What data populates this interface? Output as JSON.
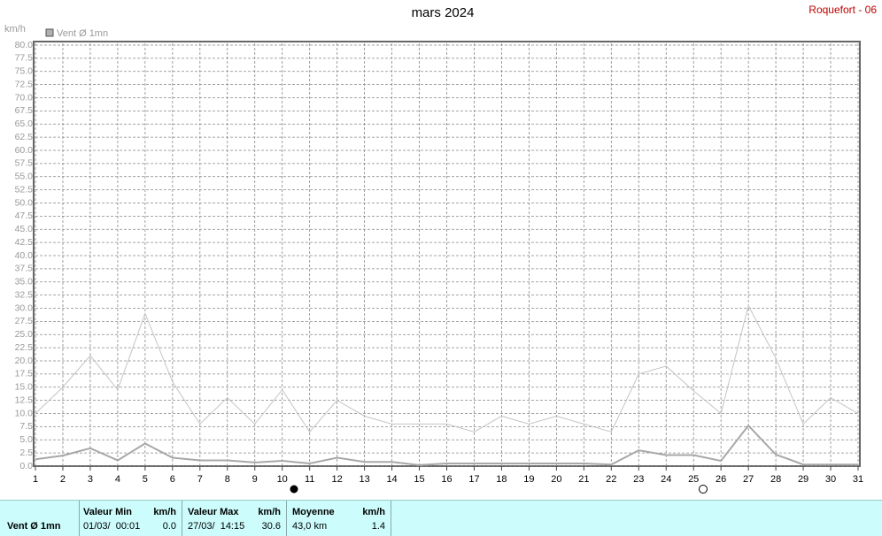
{
  "chart_data": {
    "type": "line",
    "title": "mars 2024",
    "station": "Roquefort - 06",
    "y_label": "km/h",
    "x": [
      1,
      2,
      3,
      4,
      5,
      6,
      7,
      8,
      9,
      10,
      11,
      12,
      13,
      14,
      15,
      16,
      17,
      18,
      19,
      20,
      21,
      22,
      23,
      24,
      25,
      26,
      27,
      28,
      29,
      30,
      31
    ],
    "xlim": [
      1,
      31
    ],
    "xticks": [
      1,
      2,
      3,
      4,
      5,
      6,
      7,
      8,
      9,
      10,
      11,
      12,
      13,
      14,
      15,
      16,
      17,
      18,
      19,
      20,
      21,
      22,
      23,
      24,
      25,
      26,
      27,
      28,
      29,
      30,
      31
    ],
    "ylim": [
      0,
      80
    ],
    "yticks": [
      {
        "value": 0,
        "label": "0.0"
      },
      {
        "value": 2.5,
        "label": "2.5"
      },
      {
        "value": 5,
        "label": "5.0"
      },
      {
        "value": 7.5,
        "label": "7.5"
      },
      {
        "value": 10,
        "label": "10.0"
      },
      {
        "value": 12.5,
        "label": "12.5"
      },
      {
        "value": 15,
        "label": "15.0"
      },
      {
        "value": 17.5,
        "label": "17.5"
      },
      {
        "value": 20,
        "label": "20.0"
      },
      {
        "value": 22.5,
        "label": "22.5"
      },
      {
        "value": 25,
        "label": "25.0"
      },
      {
        "value": 27.5,
        "label": "27.5"
      },
      {
        "value": 30,
        "label": "30.0"
      },
      {
        "value": 32.5,
        "label": "32.5"
      },
      {
        "value": 35,
        "label": "35.0"
      },
      {
        "value": 37.5,
        "label": "37.5"
      },
      {
        "value": 40,
        "label": "40.0"
      },
      {
        "value": 42.5,
        "label": "42.5"
      },
      {
        "value": 45,
        "label": "45.0"
      },
      {
        "value": 47.5,
        "label": "47.5"
      },
      {
        "value": 50,
        "label": "50.0"
      },
      {
        "value": 52.5,
        "label": "52.5"
      },
      {
        "value": 55,
        "label": "55.0"
      },
      {
        "value": 57.5,
        "label": "57.5"
      },
      {
        "value": 60,
        "label": "60.0"
      },
      {
        "value": 62.5,
        "label": "62.5"
      },
      {
        "value": 65,
        "label": "65.0"
      },
      {
        "value": 67.5,
        "label": "67.5"
      },
      {
        "value": 70,
        "label": "70.0"
      },
      {
        "value": 72.5,
        "label": "72.5"
      },
      {
        "value": 75,
        "label": "75.0"
      },
      {
        "value": 77.5,
        "label": "77.5"
      },
      {
        "value": 80,
        "label": "80.0"
      }
    ],
    "grid": true,
    "series": [
      {
        "color": "#c4c4c4",
        "values": [
          10,
          15,
          21,
          14.5,
          29,
          16,
          8,
          13,
          8,
          14.5,
          6.5,
          12.5,
          9.5,
          8,
          8,
          8,
          6.5,
          9.5,
          8,
          9.5,
          8,
          6.5,
          17.5,
          19,
          14.3,
          10,
          30.5,
          20.5,
          8,
          13,
          10
        ]
      },
      {
        "name": "Vent Ø 1mn",
        "color": "#a8a8a8",
        "values": [
          1.3,
          2,
          3.4,
          1.1,
          4.3,
          1.6,
          1.1,
          1.1,
          0.7,
          1,
          0.5,
          1.6,
          0.8,
          0.8,
          0.2,
          0.5,
          0.5,
          0.5,
          0.5,
          0.5,
          0.5,
          0.3,
          3,
          2.1,
          2.1,
          1,
          7.7,
          2.2,
          0.3,
          0.3,
          0.3
        ]
      }
    ]
  },
  "table": {
    "label": "Vent Ø 1mn",
    "columns": [
      {
        "header": "Valeur Min",
        "unit": "km/h",
        "when": "01/03/  00:01",
        "value": "0.0"
      },
      {
        "header": "Valeur Max",
        "unit": "km/h",
        "when": "27/03/  14:15",
        "value": "30.6"
      },
      {
        "header": "Moyenne",
        "unit": "km/h",
        "when": "43,0 km",
        "value": "1.4"
      }
    ]
  }
}
